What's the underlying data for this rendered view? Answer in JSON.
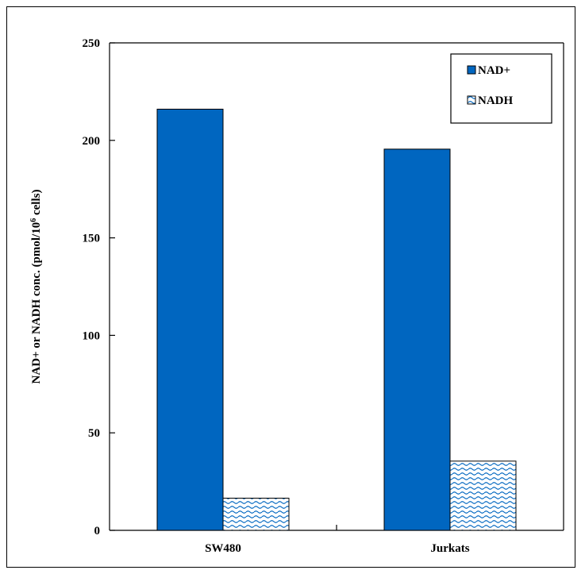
{
  "chart_data": {
    "type": "bar",
    "categories": [
      "SW480",
      "Jurkats"
    ],
    "series": [
      {
        "name": "NAD+",
        "values": [
          216,
          195.5
        ],
        "color": "#0066c0",
        "pattern": "solid"
      },
      {
        "name": "NADH",
        "values": [
          16.5,
          35.5
        ],
        "color": "#0066c0",
        "pattern": "wave"
      }
    ],
    "ylabel_main": "NAD+ or NADH conc. (pmol/10",
    "ylabel_sup": "6",
    "ylabel_end": " cells)",
    "xlabel": "",
    "ylim": [
      0,
      250
    ],
    "yticks": [
      0,
      50,
      100,
      150,
      200,
      250
    ],
    "grid": false,
    "legend_position": "top-right"
  }
}
